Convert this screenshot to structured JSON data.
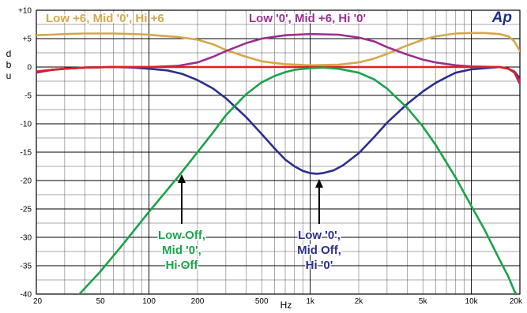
{
  "chart_data": {
    "type": "line",
    "xscale": "log",
    "xlim": [
      20,
      20000
    ],
    "ylim": [
      -40,
      10
    ],
    "grid": true,
    "xlabel": "Hz",
    "ylabel": "dbu",
    "ylabel_chars": [
      "d",
      "b",
      "u"
    ],
    "x_ticks": [
      {
        "value": 20,
        "label": "20"
      },
      {
        "value": 50,
        "label": "50"
      },
      {
        "value": 100,
        "label": "100"
      },
      {
        "value": 200,
        "label": "200"
      },
      {
        "value": 500,
        "label": "500"
      },
      {
        "value": 1000,
        "label": "1k"
      },
      {
        "value": 2000,
        "label": "2k"
      },
      {
        "value": 5000,
        "label": "5k"
      },
      {
        "value": 10000,
        "label": "10k"
      },
      {
        "value": 20000,
        "label": "20k"
      }
    ],
    "y_ticks": [
      {
        "value": 10,
        "label": "+10"
      },
      {
        "value": 5,
        "label": "+5"
      },
      {
        "value": 0,
        "label": "0"
      },
      {
        "value": -5,
        "label": "-5"
      },
      {
        "value": -10,
        "label": "-10"
      },
      {
        "value": -15,
        "label": "-15"
      },
      {
        "value": -20,
        "label": "-20"
      },
      {
        "value": -25,
        "label": "-25"
      },
      {
        "value": -30,
        "label": "-30"
      },
      {
        "value": -35,
        "label": "-35"
      },
      {
        "value": -40,
        "label": "-40"
      }
    ],
    "series": [
      {
        "name": "Low +6, Mid '0', Hi +6",
        "color": "#d4a84a",
        "points": [
          [
            20,
            5.6
          ],
          [
            25,
            5.7
          ],
          [
            30,
            5.8
          ],
          [
            40,
            5.9
          ],
          [
            50,
            5.9
          ],
          [
            60,
            5.9
          ],
          [
            80,
            5.8
          ],
          [
            100,
            5.7
          ],
          [
            120,
            5.5
          ],
          [
            150,
            5.3
          ],
          [
            200,
            4.8
          ],
          [
            250,
            4.0
          ],
          [
            300,
            3.0
          ],
          [
            400,
            1.8
          ],
          [
            500,
            1.0
          ],
          [
            700,
            0.5
          ],
          [
            1000,
            0.3
          ],
          [
            1500,
            0.4
          ],
          [
            2000,
            0.8
          ],
          [
            2500,
            1.5
          ],
          [
            3000,
            2.3
          ],
          [
            4000,
            3.8
          ],
          [
            5000,
            4.8
          ],
          [
            6000,
            5.4
          ],
          [
            8000,
            5.9
          ],
          [
            10000,
            6.0
          ],
          [
            12000,
            6.0
          ],
          [
            15000,
            5.8
          ],
          [
            17000,
            5.4
          ],
          [
            18500,
            4.5
          ],
          [
            20000,
            2.8
          ]
        ]
      },
      {
        "name": "Low '0', Mid +6, Hi '0'",
        "color": "#9b2f8e",
        "points": [
          [
            20,
            -1.0
          ],
          [
            25,
            -0.5
          ],
          [
            30,
            -0.3
          ],
          [
            40,
            -0.1
          ],
          [
            60,
            0.0
          ],
          [
            100,
            0.0
          ],
          [
            150,
            0.2
          ],
          [
            200,
            0.8
          ],
          [
            250,
            1.8
          ],
          [
            300,
            2.8
          ],
          [
            400,
            4.2
          ],
          [
            500,
            5.0
          ],
          [
            700,
            5.6
          ],
          [
            1000,
            5.8
          ],
          [
            1500,
            5.7
          ],
          [
            2000,
            5.2
          ],
          [
            2500,
            4.5
          ],
          [
            3000,
            3.5
          ],
          [
            4000,
            2.2
          ],
          [
            5000,
            1.3
          ],
          [
            6000,
            0.8
          ],
          [
            8000,
            0.3
          ],
          [
            10000,
            0.1
          ],
          [
            15000,
            0.0
          ],
          [
            17000,
            -0.3
          ],
          [
            18500,
            -1.0
          ],
          [
            20000,
            -3.0
          ]
        ]
      },
      {
        "name": "Low '0', Mid Off, Hi '0'",
        "color": "#2b2f8c",
        "points": [
          [
            20,
            -0.8
          ],
          [
            25,
            -0.5
          ],
          [
            30,
            -0.3
          ],
          [
            40,
            -0.1
          ],
          [
            60,
            0.0
          ],
          [
            80,
            -0.1
          ],
          [
            100,
            -0.3
          ],
          [
            130,
            -0.6
          ],
          [
            160,
            -1.2
          ],
          [
            200,
            -2.3
          ],
          [
            250,
            -3.8
          ],
          [
            300,
            -5.5
          ],
          [
            400,
            -8.8
          ],
          [
            500,
            -11.8
          ],
          [
            600,
            -14.3
          ],
          [
            700,
            -16.3
          ],
          [
            800,
            -17.5
          ],
          [
            900,
            -18.3
          ],
          [
            1000,
            -18.7
          ],
          [
            1100,
            -18.8
          ],
          [
            1200,
            -18.7
          ],
          [
            1400,
            -18.2
          ],
          [
            1600,
            -17.3
          ],
          [
            2000,
            -15.2
          ],
          [
            2500,
            -12.3
          ],
          [
            3000,
            -9.8
          ],
          [
            4000,
            -6.5
          ],
          [
            5000,
            -4.3
          ],
          [
            6000,
            -2.8
          ],
          [
            7000,
            -1.8
          ],
          [
            8000,
            -1.0
          ],
          [
            10000,
            -0.4
          ],
          [
            15000,
            0.0
          ],
          [
            17000,
            -0.3
          ],
          [
            18500,
            -0.8
          ],
          [
            20000,
            -2.0
          ]
        ]
      },
      {
        "name": "Low Off, Mid '0', Hi Off",
        "color": "#1aa34a",
        "points": [
          [
            37,
            -40
          ],
          [
            50,
            -36
          ],
          [
            70,
            -31
          ],
          [
            100,
            -25.5
          ],
          [
            150,
            -19.5
          ],
          [
            200,
            -15.0
          ],
          [
            250,
            -11.5
          ],
          [
            300,
            -8.5
          ],
          [
            400,
            -4.8
          ],
          [
            500,
            -2.7
          ],
          [
            600,
            -1.6
          ],
          [
            700,
            -0.9
          ],
          [
            800,
            -0.5
          ],
          [
            1000,
            -0.2
          ],
          [
            1200,
            -0.1
          ],
          [
            1500,
            -0.3
          ],
          [
            2000,
            -1.0
          ],
          [
            2500,
            -2.2
          ],
          [
            3000,
            -3.8
          ],
          [
            4000,
            -7.2
          ],
          [
            5000,
            -10.5
          ],
          [
            6000,
            -13.7
          ],
          [
            8000,
            -19.5
          ],
          [
            10000,
            -24.5
          ],
          [
            12000,
            -28.5
          ],
          [
            15000,
            -34.0
          ],
          [
            17000,
            -37.0
          ],
          [
            18500,
            -39.5
          ],
          [
            19000,
            -40
          ]
        ]
      },
      {
        "name": "",
        "color": "#e02020",
        "points": [
          [
            20,
            -0.8
          ],
          [
            25,
            -0.5
          ],
          [
            30,
            -0.3
          ],
          [
            40,
            -0.1
          ],
          [
            60,
            0.0
          ],
          [
            100,
            0.0
          ],
          [
            1000,
            0.0
          ],
          [
            5000,
            0.0
          ],
          [
            10000,
            0.0
          ],
          [
            15000,
            0.0
          ],
          [
            17000,
            -0.3
          ],
          [
            18500,
            -0.9
          ],
          [
            20000,
            -2.5
          ]
        ]
      }
    ],
    "annotations": [
      {
        "lines": [
          "Low +6, Mid '0', Hi +6"
        ],
        "color": "#d4a84a"
      },
      {
        "lines": [
          "Low '0', Mid +6, Hi '0'"
        ],
        "color": "#9b2f8e"
      },
      {
        "lines": [
          "Low Off,",
          "Mid '0',",
          "Hi Off"
        ],
        "color": "#1aa34a"
      },
      {
        "lines": [
          "Low '0',",
          "Mid Off,",
          "Hi '0'"
        ],
        "color": "#2b2f8c"
      }
    ],
    "logo": "Ap"
  }
}
